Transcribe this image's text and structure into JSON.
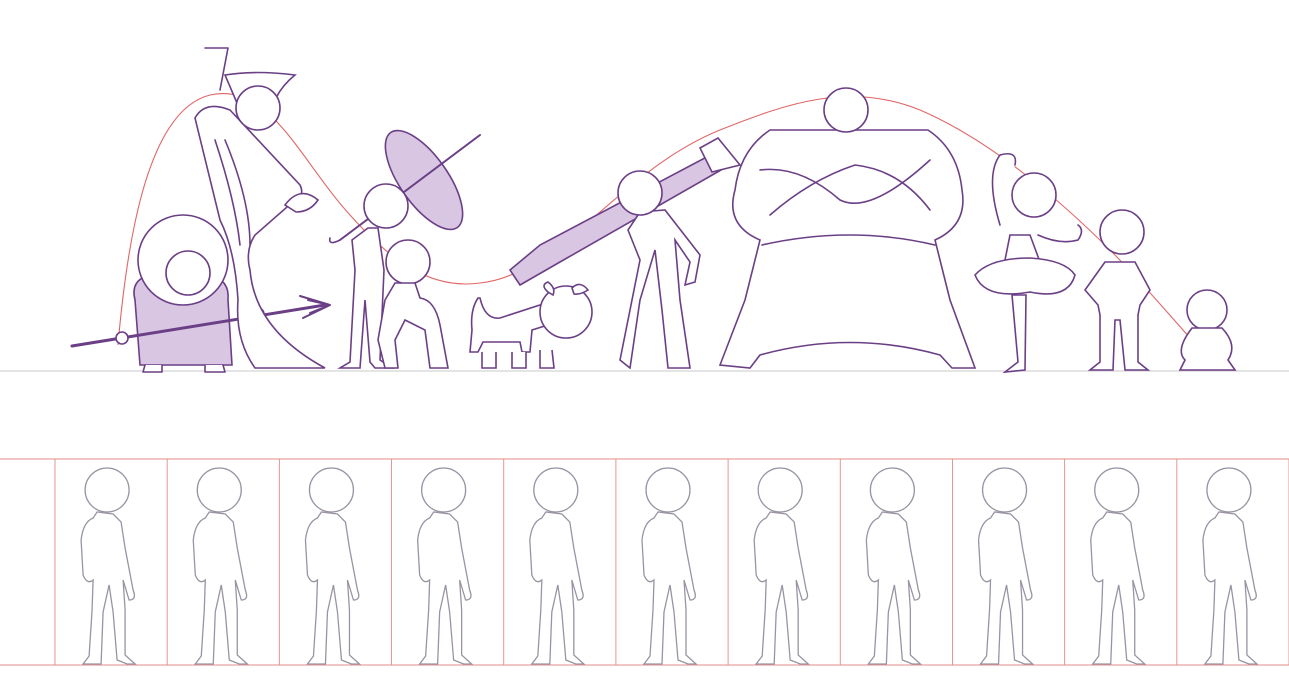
{
  "scene": {
    "description_free": true,
    "colors": {
      "character_line": "#6b3f86",
      "character_fill_accent": "#d9c6e3",
      "guide_curve": "#e06666",
      "guide_frame": "#e48a8a",
      "mannequin_line": "#9a93a3",
      "ground_line": "#c9c9c9",
      "background": "#ffffff"
    },
    "top_lineup_characters": [
      "hooded-figure-with-spear",
      "grim-reaper-with-scythe",
      "man-with-umbrella",
      "kneeling-man",
      "dog",
      "woman-with-rocket-launcher",
      "big-muscle-man",
      "ballerina",
      "boy",
      "baby"
    ],
    "bottom_row_frame_count": 11
  }
}
